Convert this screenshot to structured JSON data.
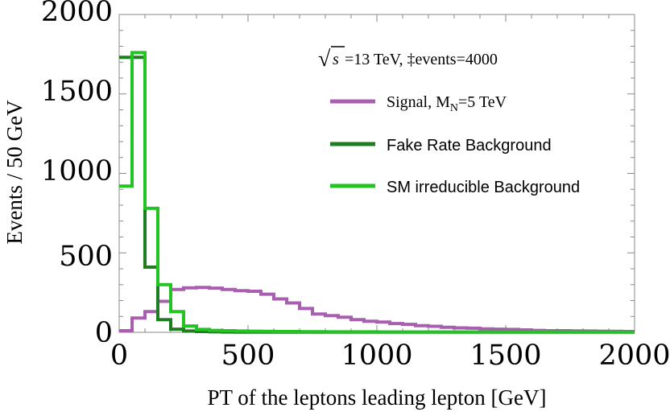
{
  "chart_data": {
    "type": "line",
    "style": "step-histogram",
    "xlabel": "PT of the leptons leading lepton [GeV]",
    "ylabel": "Events / 50 GeV",
    "xlim": [
      0,
      2000
    ],
    "ylim": [
      0,
      2000
    ],
    "bin_width": 50,
    "xticks": [
      "0",
      "500",
      "1000",
      "1500",
      "2000"
    ],
    "yticks": [
      "0",
      "500",
      "1000",
      "1500",
      "2000"
    ],
    "annotation": {
      "sqrt": "√",
      "s": "s",
      "text": " =13 TeV, ‡events=4000"
    },
    "legend_position": "top-right",
    "series": [
      {
        "name": "Signal",
        "label_main": "Signal, M",
        "label_sub": "N",
        "label_tail": "=5 TeV",
        "color": "#a85fb0",
        "values": [
          10,
          90,
          130,
          195,
          270,
          280,
          282,
          278,
          270,
          262,
          258,
          240,
          210,
          185,
          150,
          115,
          105,
          95,
          80,
          70,
          65,
          55,
          50,
          42,
          38,
          32,
          28,
          26,
          22,
          20,
          18,
          15,
          12,
          10,
          10,
          9,
          8,
          7,
          6,
          5
        ]
      },
      {
        "name": "Fake Rate Background",
        "label_main": "Fake Rate Background",
        "color": "#1e7d1e",
        "values": [
          1730,
          1730,
          410,
          80,
          20,
          8,
          5,
          3,
          2,
          1,
          1,
          1,
          1,
          1,
          1,
          1,
          1,
          1,
          1,
          1,
          1,
          1,
          1,
          1,
          1,
          1,
          1,
          1,
          1,
          1,
          1,
          1,
          1,
          1,
          1,
          1,
          1,
          1,
          1,
          1
        ]
      },
      {
        "name": "SM irreducible Background",
        "label_main": "SM irreducible Background",
        "color": "#22c322",
        "values": [
          920,
          1760,
          780,
          300,
          130,
          40,
          18,
          12,
          10,
          8,
          7,
          6,
          5,
          5,
          4,
          4,
          3,
          3,
          3,
          3,
          2,
          2,
          2,
          2,
          2,
          2,
          2,
          2,
          2,
          2,
          2,
          2,
          2,
          2,
          2,
          2,
          2,
          2,
          2,
          2
        ]
      }
    ]
  }
}
